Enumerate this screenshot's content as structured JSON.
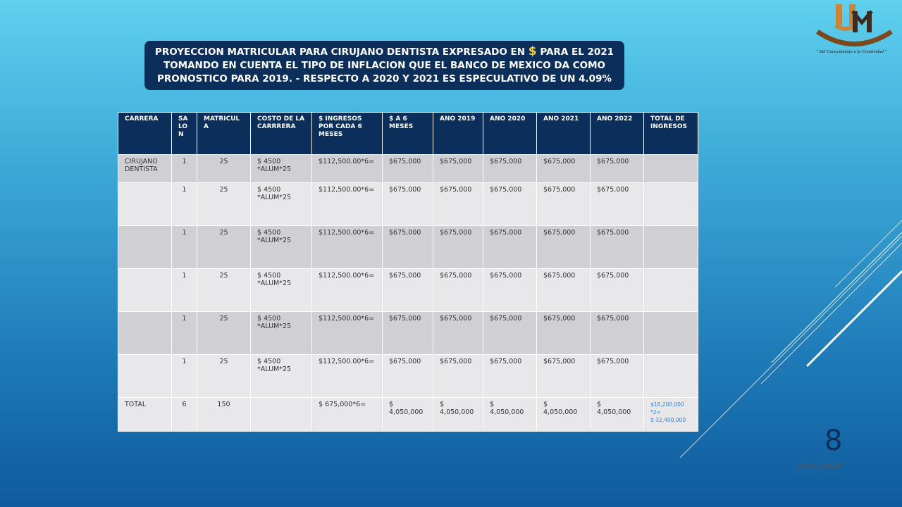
{
  "title": {
    "line1_pre": "PROYECCION MATRICULAR PARA CIRUJANO DENTISTA EXPRESADO EN ",
    "dollar": "$",
    "line1_post": " PARA EL 2021",
    "line2": "TOMANDO EN CUENTA EL TIPO DE INFLACION QUE EL BANCO DE MEXICO DA COMO",
    "line3": "PRONOSTICO PARA 2019. - RESPECTO A 2020 Y 2021 ES ESPECULATIVO DE UN 4.09%"
  },
  "logo": {
    "tagline": "\" Del Conocimiento a la Creatividad \""
  },
  "table": {
    "headers": [
      "CARRERA",
      "SA LO N",
      "MATRICUL A",
      "COSTO DE LA CARRRERA",
      "$ INGRESOS POR CADA 6 MESES",
      "$ A 6 MESES",
      "ANO 2019",
      "ANO 2020",
      "ANO 2021",
      "ANO 2022",
      "TOTAL DE INGRESOS"
    ],
    "rows": [
      [
        "CIRUJANO DENTISTA",
        "1",
        "25",
        "$ 4500 *ALUM*25",
        "$112,500.00*6=",
        "$675,000",
        "$675,000",
        "$675,000",
        "$675,000",
        "$675,000",
        ""
      ],
      [
        "",
        "1",
        "25",
        "$ 4500 *ALUM*25",
        "$112,500.00*6=",
        "$675,000",
        "$675,000",
        "$675,000",
        "$675,000",
        "$675,000",
        ""
      ],
      [
        "",
        "1",
        "25",
        "$ 4500 *ALUM*25",
        "$112,500.00*6=",
        "$675,000",
        "$675,000",
        "$675,000",
        "$675,000",
        "$675,000",
        ""
      ],
      [
        "",
        "1",
        "25",
        "$ 4500 *ALUM*25",
        "$112,500.00*6=",
        "$675,000",
        "$675,000",
        "$675,000",
        "$675,000",
        "$675,000",
        ""
      ],
      [
        "",
        "1",
        "25",
        "$ 4500 *ALUM*25",
        "$112,500.00*6=",
        "$675,000",
        "$675,000",
        "$675,000",
        "$675,000",
        "$675,000",
        ""
      ],
      [
        "",
        "1",
        "25",
        "$ 4500 *ALUM*25",
        "$112,500.00*6=",
        "$675,000",
        "$675,000",
        "$675,000",
        "$675,000",
        "$675,000",
        ""
      ]
    ],
    "total": {
      "label": "TOTAL",
      "salon": "6",
      "matricula": "150",
      "costo": "",
      "ingresos": "$ 675,000*6=",
      "seis_meses": "$ 4,050,000",
      "ano2019": "$ 4,050,000",
      "ano2020": "$ 4,050,000",
      "ano2021": "$ 4,050,000",
      "ano2022": "$ 4,050,000",
      "total_line1": "$16,200,000",
      "total_line2": "*2=",
      "total_line3": "$ 32,400,000"
    }
  },
  "page_number": "8",
  "date": "25/01/2019",
  "colors": {
    "title_bg": "#0b2e5a",
    "header_bg": "#0b2e5a",
    "dollar": "#ffd21f",
    "total_blue": "#2f7fe0"
  }
}
